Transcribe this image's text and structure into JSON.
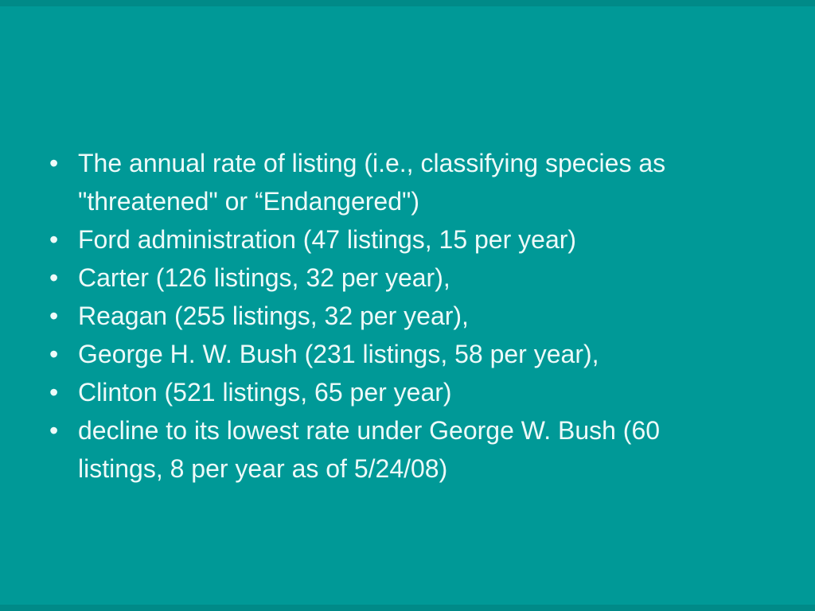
{
  "slide": {
    "bullet_glyph": "•",
    "bullets": [
      {
        "text": "The annual rate of listing (i.e., classifying species as \"threatened\" or “Endangered\")"
      },
      {
        "text": "Ford administration (47 listings, 15 per year)"
      },
      {
        "text": "Carter (126 listings, 32 per year),"
      },
      {
        "text": "Reagan (255 listings, 32 per year),"
      },
      {
        "text": "George H. W. Bush (231 listings, 58 per year),"
      },
      {
        "text": "Clinton (521 listings, 65 per year)"
      },
      {
        "text": "decline to its lowest rate under George W. Bush (60 listings, 8 per year as of 5/24/08)"
      }
    ]
  },
  "colors": {
    "background": "#009997",
    "edge_band": "#008a88",
    "text": "#edfaf9"
  }
}
